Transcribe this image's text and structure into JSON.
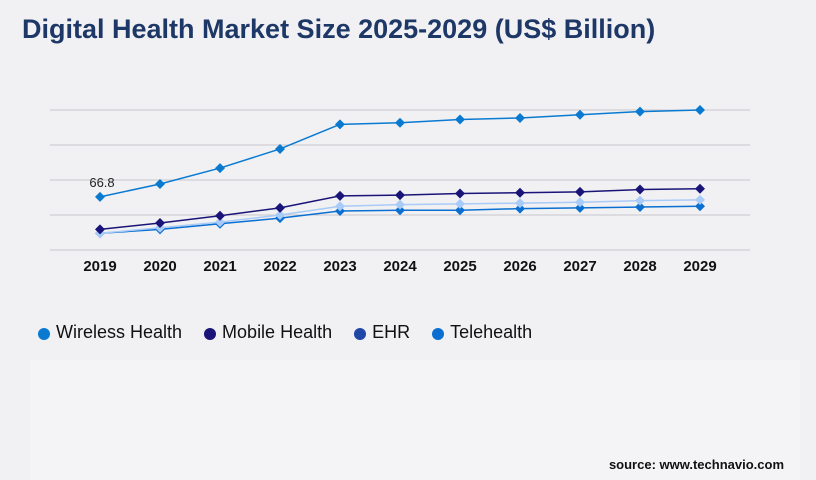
{
  "chart_data": {
    "type": "line",
    "title": "Digital Health Market Size 2025-2029 (US$ Billion)",
    "categories": [
      "2019",
      "2020",
      "2021",
      "2022",
      "2023",
      "2024",
      "2025",
      "2026",
      "2027",
      "2028",
      "2029"
    ],
    "ylim": [
      0,
      176
    ],
    "grid": true,
    "legend_position": "bottom-left",
    "annotations": [
      {
        "series": "Wireless Health",
        "category": "2019",
        "text": "66.8"
      }
    ],
    "series": [
      {
        "name": "Wireless Health",
        "color": "#0a7ad0",
        "legend_color": "#0a7ad0",
        "values": [
          66.8,
          83,
          103,
          127,
          158,
          160,
          164,
          166,
          170,
          174,
          176
        ]
      },
      {
        "name": "Mobile Health",
        "color": "#1a1478",
        "legend_color": "#1a1478",
        "values": [
          26,
          34,
          43,
          53,
          68,
          69,
          71,
          72,
          73,
          76,
          77
        ]
      },
      {
        "name": "EHR",
        "color": "#a9cbf7",
        "legend_color": "#1f47a8",
        "values": [
          21,
          28,
          35,
          44,
          55,
          57,
          58,
          59,
          60,
          62,
          63
        ]
      },
      {
        "name": "Telehealth",
        "color": "#0a6fd0",
        "legend_color": "#0a6fd0",
        "values": [
          21,
          26,
          33,
          40,
          49,
          50,
          50,
          52,
          53,
          54,
          55
        ]
      }
    ]
  },
  "source": "source: www.technavio.com"
}
